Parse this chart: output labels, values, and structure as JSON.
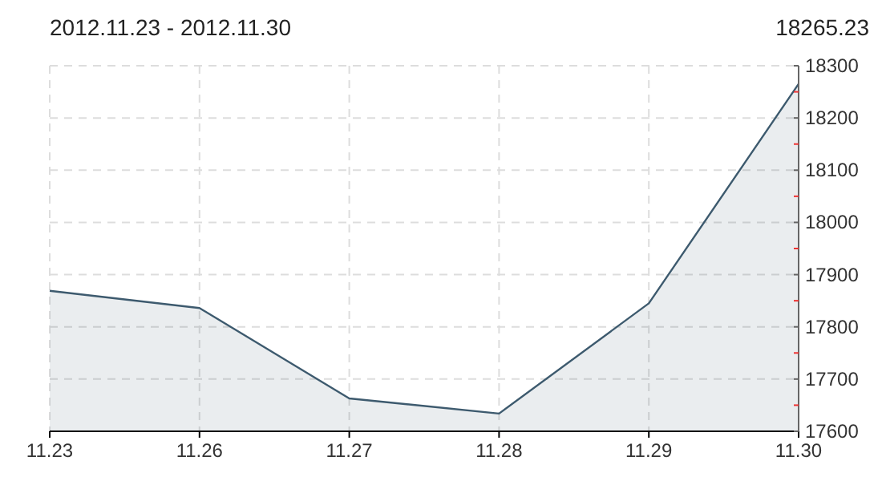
{
  "chart_data": {
    "type": "area",
    "title": "2012.11.23 - 2012.11.30",
    "annotations": [
      "18265.23"
    ],
    "categories": [
      "11.23",
      "11.26",
      "11.27",
      "11.28",
      "11.29",
      "11.30"
    ],
    "series": [
      {
        "color": "#3d5a6e",
        "values": [
          17869,
          17836,
          17663,
          17634,
          17845,
          18265.23
        ]
      }
    ],
    "ylim": [
      17600,
      18300
    ],
    "yticks": [
      17600,
      {
        "value": 17650,
        "label": null
      },
      17700,
      {
        "value": 17750,
        "label": null
      },
      17800,
      {
        "value": 17850,
        "label": null
      },
      17900,
      {
        "value": 17950,
        "label": null
      },
      18000,
      {
        "value": 18050,
        "label": null
      },
      18100,
      {
        "value": 18150,
        "label": null
      },
      18200,
      {
        "value": 18250,
        "label": null
      },
      18300
    ],
    "grid": true
  }
}
